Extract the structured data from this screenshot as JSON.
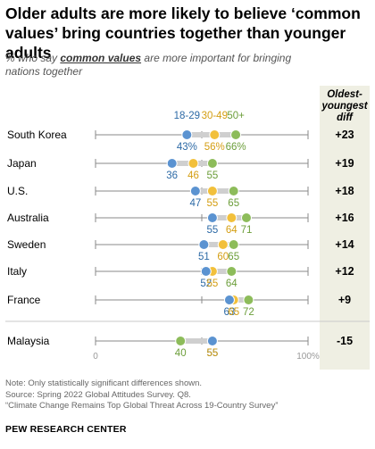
{
  "title": "Older adults are more likely to believe ‘common values’ bring countries together than younger adults",
  "subtitle": {
    "prefix": "% who say ",
    "keyword": "common values",
    "suffix": " are more important for bringing nations together"
  },
  "diff_header": "Oldest-youngest diff",
  "notes": [
    "Note: Only statistically significant differences shown.",
    "Source: Spring 2022 Global Attitudes Survey. Q8.",
    "“Climate Change Remains Top Global Threat Across 19-Country Survey”"
  ],
  "source_org": "PEW RESEARCH CENTER",
  "colors": {
    "age_18_29": "#5b93d1",
    "age_30_49": "#f2c03b",
    "age_50_plus": "#8dbc5a",
    "label_18_29": "#2d6aa6",
    "label_30_49": "#d49e12",
    "label_50_plus": "#6c9e3a",
    "axis": "#8a8a8a",
    "diff_bg": "#efefe3"
  },
  "chart_data": {
    "type": "dot",
    "xlim": [
      0,
      100
    ],
    "axis_labels": [
      "0",
      "100%"
    ],
    "series": [
      {
        "name": "18-29",
        "key": "age_18_29"
      },
      {
        "name": "30-49",
        "key": "age_30_49"
      },
      {
        "name": "50+",
        "key": "age_50_plus"
      }
    ],
    "rows": [
      {
        "country": "South Korea",
        "values": [
          43,
          56,
          66
        ],
        "labels": [
          "43%",
          "56%",
          "66%"
        ],
        "diff": "+23"
      },
      {
        "country": "Japan",
        "values": [
          36,
          46,
          55
        ],
        "labels": [
          "36",
          "46",
          "55"
        ],
        "diff": "+19"
      },
      {
        "country": "U.S.",
        "values": [
          47,
          55,
          65
        ],
        "labels": [
          "47",
          "55",
          "65"
        ],
        "diff": "+18"
      },
      {
        "country": "Australia",
        "values": [
          55,
          64,
          71
        ],
        "labels": [
          "55",
          "64",
          "71"
        ],
        "diff": "+16"
      },
      {
        "country": "Sweden",
        "values": [
          51,
          60,
          65
        ],
        "labels": [
          "51",
          "60",
          "65"
        ],
        "diff": "+14"
      },
      {
        "country": "Italy",
        "values": [
          52,
          55,
          64
        ],
        "labels": [
          "52",
          "55",
          "64"
        ],
        "diff": "+12"
      },
      {
        "country": "France",
        "values": [
          63,
          65,
          72
        ],
        "labels": [
          "63",
          "65",
          "72"
        ],
        "diff": "+9"
      },
      {
        "country": "Malaysia",
        "values": [
          55,
          55,
          40
        ],
        "labels": [
          "55",
          "55",
          "40"
        ],
        "diff": "-15"
      }
    ]
  }
}
